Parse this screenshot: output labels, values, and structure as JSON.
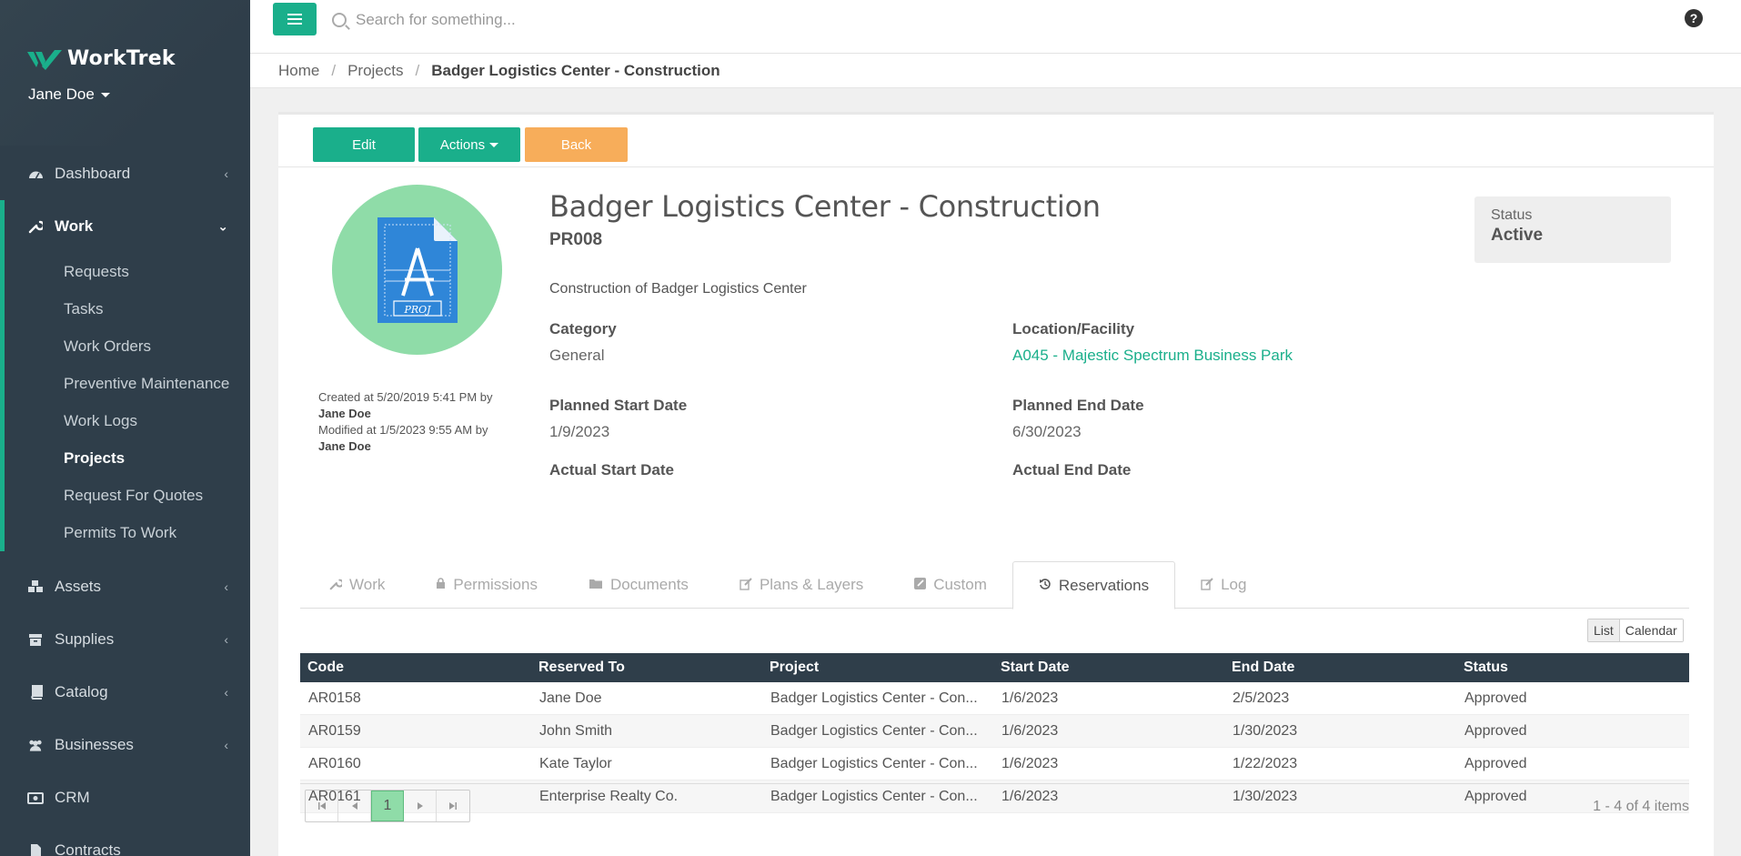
{
  "app": {
    "name": "WorkTrek",
    "user": "Jane Doe"
  },
  "colors": {
    "accent": "#1aaf8b",
    "sidebar": "#2f3e4a",
    "back_button": "#f7ad5a",
    "avatar_bg": "#8fdca8"
  },
  "sidebar": {
    "items": [
      {
        "label": "Dashboard",
        "icon": "dashboard-icon"
      },
      {
        "label": "Work",
        "icon": "wrench-icon"
      },
      {
        "label": "Assets",
        "icon": "cubes-icon"
      },
      {
        "label": "Supplies",
        "icon": "archive-icon"
      },
      {
        "label": "Catalog",
        "icon": "book-icon"
      },
      {
        "label": "Businesses",
        "icon": "users-icon"
      },
      {
        "label": "CRM",
        "icon": "money-icon"
      },
      {
        "label": "Contracts",
        "icon": "file-icon"
      }
    ],
    "work_subitems": [
      "Requests",
      "Tasks",
      "Work Orders",
      "Preventive Maintenance",
      "Work Logs",
      "Projects",
      "Request For Quotes",
      "Permits To Work"
    ]
  },
  "topbar": {
    "search_placeholder": "Search for something...",
    "help": "?"
  },
  "breadcrumb": {
    "home": "Home",
    "projects": "Projects",
    "current": "Badger Logistics Center - Construction"
  },
  "toolbar": {
    "edit": "Edit",
    "actions": "Actions",
    "back": "Back"
  },
  "project": {
    "title": "Badger Logistics Center - Construction",
    "code": "PR008",
    "description": "Construction of Badger Logistics Center",
    "avatar_text": "PROJ",
    "created_line": "Created at 5/20/2019 5:41 PM by",
    "created_by": "Jane Doe",
    "modified_line": "Modified at 1/5/2023 9:55 AM by",
    "modified_by": "Jane Doe",
    "fields": {
      "category_label": "Category",
      "category": "General",
      "location_label": "Location/Facility",
      "location": "A045 - Majestic Spectrum Business Park",
      "planned_start_label": "Planned Start Date",
      "planned_start": "1/9/2023",
      "planned_end_label": "Planned End Date",
      "planned_end": "6/30/2023",
      "actual_start_label": "Actual Start Date",
      "actual_end_label": "Actual End Date"
    },
    "status_label": "Status",
    "status": "Active"
  },
  "tabs": [
    {
      "label": "Work",
      "icon": "wrench-icon"
    },
    {
      "label": "Permissions",
      "icon": "lock-icon"
    },
    {
      "label": "Documents",
      "icon": "folder-icon"
    },
    {
      "label": "Plans & Layers",
      "icon": "edit-icon"
    },
    {
      "label": "Custom",
      "icon": "square-edit-icon"
    },
    {
      "label": "Reservations",
      "icon": "history-icon"
    },
    {
      "label": "Log",
      "icon": "edit-icon"
    }
  ],
  "view_toggle": {
    "list": "List",
    "calendar": "Calendar"
  },
  "reservations": {
    "columns": [
      "Code",
      "Reserved To",
      "Project",
      "Start Date",
      "End Date",
      "Status"
    ],
    "rows": [
      [
        "AR0158",
        "Jane Doe",
        "Badger Logistics Center - Con...",
        "1/6/2023",
        "2/5/2023",
        "Approved"
      ],
      [
        "AR0159",
        "John Smith",
        "Badger Logistics Center - Con...",
        "1/6/2023",
        "1/30/2023",
        "Approved"
      ],
      [
        "AR0160",
        "Kate Taylor",
        "Badger Logistics Center - Con...",
        "1/6/2023",
        "1/22/2023",
        "Approved"
      ],
      [
        "AR0161",
        "Enterprise Realty Co.",
        "Badger Logistics Center - Con...",
        "1/6/2023",
        "1/30/2023",
        "Approved"
      ]
    ],
    "page": "1",
    "pager_info": "1 - 4 of 4 items"
  }
}
